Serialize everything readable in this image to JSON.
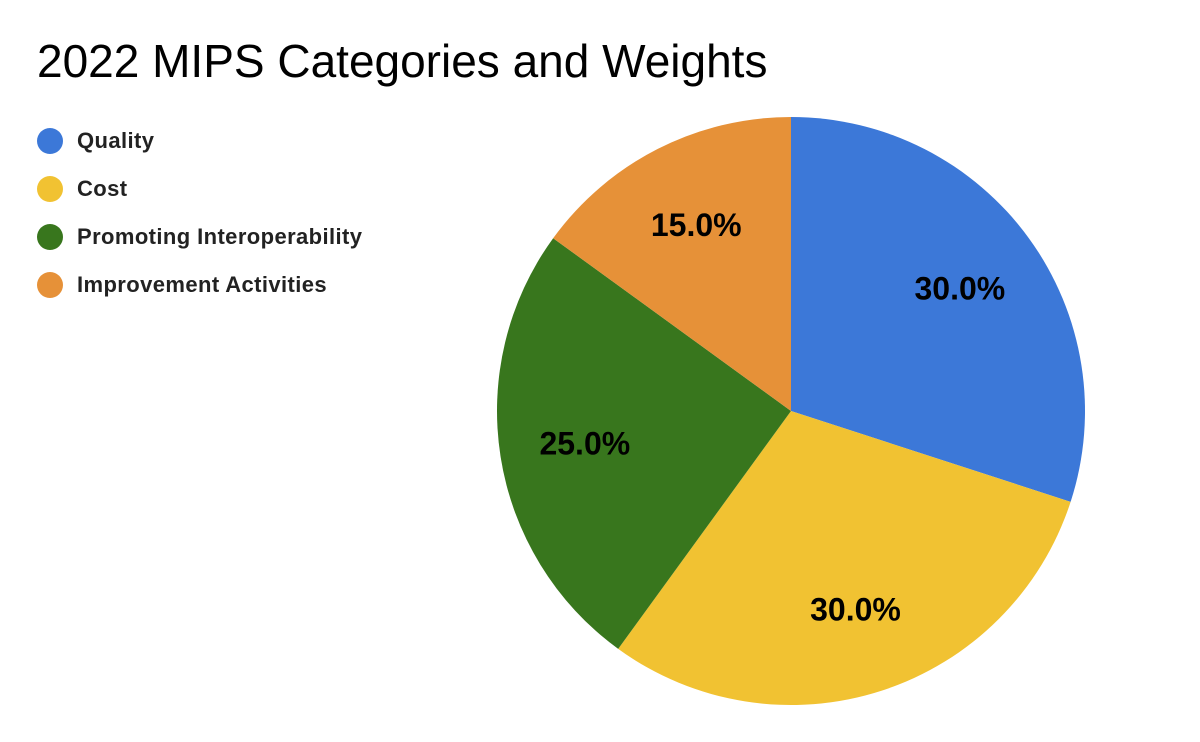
{
  "chart_data": {
    "type": "pie",
    "title": "2022 MIPS Categories and Weights",
    "legend_position": "top-left",
    "slices": [
      {
        "label": "Quality",
        "value": 30.0,
        "display": "30.0%",
        "color": "#3c78d8"
      },
      {
        "label": "Cost",
        "value": 30.0,
        "display": "30.0%",
        "color": "#f1c232"
      },
      {
        "label": "Promoting Interoperability",
        "value": 25.0,
        "display": "25.0%",
        "color": "#38761d"
      },
      {
        "label": "Improvement Activities",
        "value": 15.0,
        "display": "15.0%",
        "color": "#e69138"
      }
    ]
  }
}
